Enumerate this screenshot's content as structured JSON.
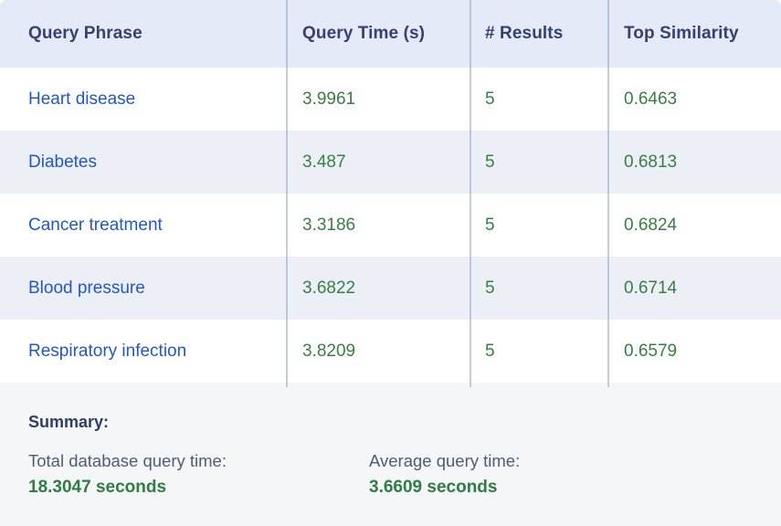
{
  "table": {
    "headers": [
      "Query Phrase",
      "Query Time (s)",
      "# Results",
      "Top Similarity"
    ],
    "rows": [
      {
        "phrase": "Heart disease",
        "time": "3.9961",
        "results": "5",
        "similarity": "0.6463"
      },
      {
        "phrase": "Diabetes",
        "time": "3.487",
        "results": "5",
        "similarity": "0.6813"
      },
      {
        "phrase": "Cancer treatment",
        "time": "3.3186",
        "results": "5",
        "similarity": "0.6824"
      },
      {
        "phrase": "Blood pressure",
        "time": "3.6822",
        "results": "5",
        "similarity": "0.6714"
      },
      {
        "phrase": "Respiratory infection",
        "time": "3.8209",
        "results": "5",
        "similarity": "0.6579"
      }
    ]
  },
  "summary": {
    "title": "Summary:",
    "items": [
      {
        "label": "Total database query time:",
        "value": "18.3047 seconds"
      },
      {
        "label": "Average query time:",
        "value": "3.6609 seconds"
      }
    ]
  },
  "colors": {
    "header_bg": "#e5eaf8",
    "alt_row_bg": "#eceff6",
    "summary_bg": "#f5f6f8",
    "header_text": "#33426e",
    "phrase_text": "#2356c7",
    "number_text": "#377e43",
    "summary_label_text": "#4e5c77",
    "summary_value_text": "#2e7d42",
    "separator": "#94a3c4"
  }
}
